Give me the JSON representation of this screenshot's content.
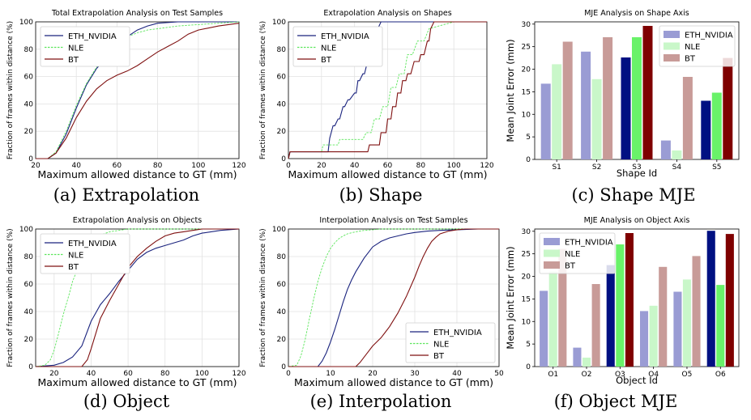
{
  "colors": {
    "eth": "#1a237e",
    "nle": "#5ce65c",
    "bt": "#7f1010",
    "grid": "#e2e2e2",
    "bar_eth_light": "#9a9cd4",
    "bar_nle_light": "#c9f7c9",
    "bar_bt_light": "#c89b98",
    "bar_eth_dark": "#001082",
    "bar_nle_dark": "#69f269",
    "bar_bt_dark": "#7f0000"
  },
  "chart_data": [
    {
      "id": "a",
      "type": "line",
      "title": "Total Extrapolation Analysis on Test Samples",
      "caption": "(a) Extrapolation",
      "xlabel": "Maximum allowed distance to GT (mm)",
      "ylabel": "Fraction of frames within distance (%)",
      "xlim": [
        20,
        120
      ],
      "ylim": [
        0,
        100
      ],
      "xticks": [
        20,
        40,
        60,
        80,
        100,
        120
      ],
      "yticks": [
        0,
        20,
        40,
        60,
        80,
        100
      ],
      "legend": "top-left",
      "series": [
        {
          "name": "ETH_NVIDIA",
          "style": "solid",
          "color": "#1a237e",
          "x": [
            20,
            26,
            30,
            35,
            40,
            45,
            50,
            55,
            60,
            65,
            70,
            75,
            80,
            90,
            100,
            110,
            120
          ],
          "y": [
            0,
            0,
            4,
            18,
            37,
            54,
            66,
            74,
            82,
            89,
            94,
            97,
            99,
            100,
            100,
            100,
            100
          ]
        },
        {
          "name": "NLE",
          "style": "dashed",
          "color": "#5ce65c",
          "x": [
            20,
            26,
            30,
            35,
            40,
            45,
            50,
            55,
            60,
            65,
            70,
            75,
            80,
            90,
            100,
            110,
            120
          ],
          "y": [
            0,
            0,
            5,
            20,
            39,
            55,
            67,
            77,
            86,
            89,
            92,
            94,
            95,
            97,
            98,
            99,
            100
          ]
        },
        {
          "name": "BT",
          "style": "solid",
          "color": "#7f1010",
          "x": [
            20,
            26,
            30,
            35,
            40,
            45,
            50,
            55,
            60,
            65,
            70,
            75,
            80,
            85,
            90,
            95,
            100,
            110,
            120
          ],
          "y": [
            0,
            0,
            4,
            15,
            30,
            42,
            51,
            57,
            61,
            64,
            68,
            73,
            78,
            82,
            86,
            91,
            94,
            97,
            99
          ]
        }
      ]
    },
    {
      "id": "b",
      "type": "line",
      "title": "Extrapolation Analysis on Shapes",
      "caption": "(b) Shape",
      "xlabel": "Maximum allowed distance to GT (mm)",
      "ylabel": "Fraction of frames within distance (%)",
      "xlim": [
        0,
        120
      ],
      "ylim": [
        0,
        100
      ],
      "xticks": [
        0,
        20,
        40,
        60,
        80,
        100,
        120
      ],
      "yticks": [
        0,
        20,
        40,
        60,
        80,
        100
      ],
      "legend": "top-left",
      "series": [
        {
          "name": "ETH_NVIDIA",
          "style": "solid",
          "color": "#1a237e",
          "x": [
            0,
            1,
            24,
            25,
            27,
            28,
            30,
            31,
            33,
            34,
            36,
            37,
            40,
            41,
            42,
            43,
            45,
            46,
            47,
            48,
            50,
            51,
            53,
            54,
            56,
            120
          ],
          "y": [
            0,
            5,
            5,
            15,
            24,
            24,
            29,
            29,
            38,
            38,
            43,
            43,
            48,
            48,
            57,
            57,
            62,
            62,
            67,
            76,
            76,
            86,
            86,
            95,
            100,
            100
          ]
        },
        {
          "name": "NLE",
          "style": "dashed",
          "color": "#5ce65c",
          "x": [
            0,
            1,
            20,
            21,
            30,
            31,
            45,
            47,
            50,
            52,
            55,
            57,
            60,
            62,
            65,
            67,
            70,
            72,
            75,
            78,
            82,
            85,
            100,
            120
          ],
          "y": [
            0,
            5,
            5,
            10,
            10,
            14,
            14,
            19,
            19,
            29,
            29,
            38,
            38,
            52,
            52,
            62,
            62,
            76,
            76,
            86,
            86,
            95,
            100,
            100
          ]
        },
        {
          "name": "BT",
          "style": "solid",
          "color": "#7f1010",
          "x": [
            0,
            1,
            48,
            49,
            55,
            56,
            59,
            60,
            62,
            63,
            65,
            66,
            68,
            69,
            71,
            72,
            74,
            76,
            79,
            80,
            82,
            84,
            85,
            86,
            88,
            120
          ],
          "y": [
            0,
            5,
            5,
            10,
            10,
            19,
            19,
            29,
            29,
            38,
            38,
            48,
            48,
            57,
            57,
            62,
            62,
            71,
            71,
            76,
            76,
            86,
            86,
            95,
            100,
            100
          ]
        }
      ]
    },
    {
      "id": "c",
      "type": "bar",
      "title": "MJE Analysis on Shape Axis",
      "caption": "(c) Shape MJE",
      "xlabel": "Shape Id",
      "ylabel": "Mean Joint Error (mm)",
      "ylim": [
        0,
        30.5
      ],
      "yticks": [
        0,
        5,
        10,
        15,
        20,
        25,
        30
      ],
      "categories": [
        "S1",
        "S2",
        "S3",
        "S4",
        "S5"
      ],
      "legend": "top-right",
      "series": [
        {
          "name": "ETH_NVIDIA",
          "values": [
            16.8,
            23.9,
            22.6,
            4.2,
            13.0
          ]
        },
        {
          "name": "NLE",
          "values": [
            21.1,
            17.8,
            27.1,
            2.0,
            14.8
          ]
        },
        {
          "name": "BT",
          "values": [
            26.1,
            27.1,
            29.6,
            18.3,
            22.5
          ]
        }
      ],
      "highlight": [
        2,
        4
      ]
    },
    {
      "id": "d",
      "type": "line",
      "title": "Extrapolation Analysis on Objects",
      "caption": "(d) Object",
      "xlabel": "Maximum allowed distance to GT (mm)",
      "ylabel": "Fraction of frames within distance (%)",
      "xlim": [
        10,
        120
      ],
      "ylim": [
        0,
        100
      ],
      "xticks": [
        20,
        40,
        60,
        80,
        100,
        120
      ],
      "yticks": [
        0,
        20,
        40,
        60,
        80,
        100
      ],
      "legend": "top-left",
      "series": [
        {
          "name": "ETH_NVIDIA",
          "style": "solid",
          "color": "#1a237e",
          "x": [
            10,
            20,
            25,
            30,
            35,
            40,
            45,
            50,
            55,
            60,
            65,
            70,
            75,
            80,
            85,
            90,
            95,
            100,
            110,
            120
          ],
          "y": [
            0,
            1,
            3,
            7,
            15,
            33,
            45,
            53,
            62,
            70,
            78,
            83,
            86,
            88,
            90,
            92,
            95,
            97,
            99,
            100
          ]
        },
        {
          "name": "NLE",
          "style": "dashed",
          "color": "#5ce65c",
          "x": [
            10,
            15,
            18,
            20,
            22,
            25,
            28,
            30,
            33,
            36,
            40,
            43,
            46,
            50,
            55,
            60,
            120
          ],
          "y": [
            0,
            1,
            5,
            12,
            22,
            38,
            52,
            62,
            72,
            80,
            88,
            93,
            96,
            98,
            99,
            100,
            100
          ]
        },
        {
          "name": "BT",
          "style": "solid",
          "color": "#7f1010",
          "x": [
            10,
            35,
            38,
            40,
            45,
            50,
            55,
            60,
            65,
            70,
            75,
            80,
            85,
            90,
            95,
            100,
            110,
            120
          ],
          "y": [
            0,
            0,
            5,
            13,
            35,
            48,
            60,
            72,
            80,
            86,
            91,
            95,
            97,
            98,
            99,
            100,
            100,
            100
          ]
        }
      ]
    },
    {
      "id": "e",
      "type": "line",
      "title": "Interpolation Analysis on Test Samples",
      "caption": "(e) Interpolation",
      "xlabel": "Maximum allowed distance to GT (mm)",
      "ylabel": "Fraction of frames within distance (%)",
      "xlim": [
        0,
        50
      ],
      "ylim": [
        0,
        100
      ],
      "xticks": [
        0,
        10,
        20,
        30,
        40,
        50
      ],
      "yticks": [
        0,
        20,
        40,
        60,
        80,
        100
      ],
      "legend": "bottom-right",
      "series": [
        {
          "name": "ETH_NVIDIA",
          "style": "solid",
          "color": "#1a237e",
          "x": [
            0,
            7,
            8,
            9,
            10,
            11,
            12,
            13,
            14,
            15,
            16,
            17,
            18,
            19,
            20,
            22,
            24,
            26,
            28,
            30,
            33,
            36,
            40,
            45,
            50
          ],
          "y": [
            0,
            0,
            4,
            10,
            18,
            27,
            37,
            47,
            56,
            63,
            69,
            74,
            79,
            83,
            87,
            91,
            93.5,
            95,
            96.5,
            97.5,
            98.5,
            99,
            99.5,
            100,
            100
          ]
        },
        {
          "name": "NLE",
          "style": "dashed",
          "color": "#5ce65c",
          "x": [
            0,
            2,
            3,
            4,
            5,
            6,
            7,
            8,
            9,
            10,
            11,
            12,
            13,
            14,
            16,
            18,
            20,
            22,
            25,
            30,
            50
          ],
          "y": [
            0,
            1,
            8,
            20,
            35,
            49,
            62,
            72,
            80,
            86,
            90,
            93,
            95,
            96.5,
            98,
            99,
            99.5,
            100,
            100,
            100,
            100
          ]
        },
        {
          "name": "BT",
          "style": "solid",
          "color": "#7f1010",
          "x": [
            0,
            16,
            17,
            18,
            19,
            20,
            21,
            22,
            23,
            24,
            25,
            26,
            27,
            28,
            29,
            30,
            31,
            32,
            33,
            34,
            35,
            36,
            38,
            40,
            42,
            45,
            50
          ],
          "y": [
            0,
            0,
            3,
            7,
            11,
            15,
            18,
            21,
            25,
            29,
            34,
            39,
            45,
            51,
            58,
            65,
            73,
            80,
            86,
            91,
            94,
            96.5,
            98.5,
            99.5,
            100,
            100,
            100
          ]
        }
      ]
    },
    {
      "id": "f",
      "type": "bar",
      "title": "MJE Analysis on Object Axis",
      "caption": "(f) Object MJE",
      "xlabel": "Object Id",
      "ylabel": "Mean Joint Error (mm)",
      "ylim": [
        0,
        30.5
      ],
      "yticks": [
        0,
        5,
        10,
        15,
        20,
        25,
        30
      ],
      "categories": [
        "O1",
        "O2",
        "O3",
        "O4",
        "O5",
        "O6"
      ],
      "legend": "top-left",
      "series": [
        {
          "name": "ETH_NVIDIA",
          "values": [
            16.8,
            4.2,
            22.5,
            12.3,
            16.6,
            30.1
          ]
        },
        {
          "name": "NLE",
          "values": [
            21.1,
            2.0,
            27.1,
            13.5,
            19.3,
            18.1
          ]
        },
        {
          "name": "BT",
          "values": [
            26.1,
            18.3,
            29.6,
            22.1,
            24.5,
            29.4
          ]
        }
      ],
      "highlight": [
        2,
        5
      ]
    }
  ]
}
